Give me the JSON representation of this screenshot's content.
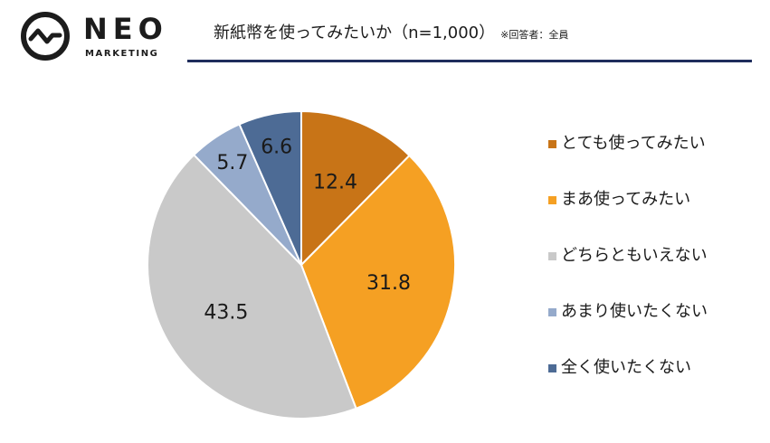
{
  "logo": {
    "wordmark": "NEO",
    "subword": "MARKETING",
    "icon": "pulse-circle-icon",
    "color": "#1c1c1c"
  },
  "header": {
    "title": "新紙幣を使ってみたいか（n=1,000）",
    "note": "※回答者：全員",
    "rule_color": "#1f2d5c"
  },
  "chart_data": {
    "type": "pie",
    "title": "新紙幣を使ってみたいか（n=1,000）",
    "categories": [
      "とても使ってみたい",
      "まあ使ってみたい",
      "どちらともいえない",
      "あまり使いたくない",
      "全く使いたくない"
    ],
    "values": [
      12.4,
      31.8,
      43.5,
      5.7,
      6.6
    ],
    "labels": [
      "12.4",
      "31.8",
      "43.5",
      "5.7",
      "6.6"
    ],
    "colors": [
      "#c87417",
      "#f5a023",
      "#c9c9c9",
      "#95aacb",
      "#4d6b95"
    ],
    "start": "12 o'clock",
    "direction": "clockwise",
    "legend_position": "right"
  }
}
